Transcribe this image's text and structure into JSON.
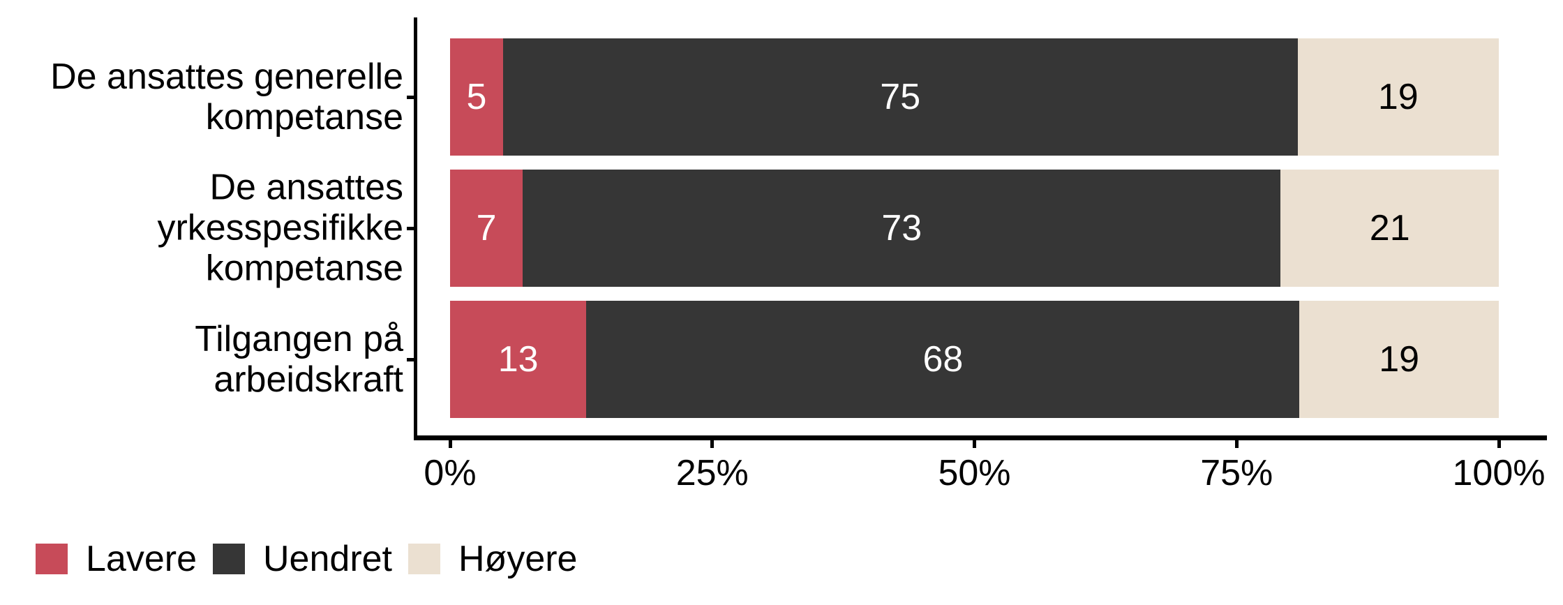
{
  "chart_data": {
    "type": "bar",
    "orientation": "horizontal",
    "stacking": "fill",
    "title": "",
    "xlabel": "",
    "ylabel": "",
    "grid": false,
    "axis_color": "#000000",
    "background_color": "#ffffff",
    "categories": [
      "De ansattes generelle kompetanse",
      "De ansattes yrkesspesifikke kompetanse",
      "Tilgangen på arbeidskraft"
    ],
    "category_label_lines": [
      [
        "De ansattes generelle",
        "kompetanse"
      ],
      [
        "De ansattes",
        "yrkesspesifikke",
        "kompetanse"
      ],
      [
        "Tilgangen på arbeidskraft"
      ]
    ],
    "series": [
      {
        "name": "Lavere",
        "color": "#C74B59",
        "label_color": "#ffffff",
        "values": [
          5,
          7,
          13
        ]
      },
      {
        "name": "Uendret",
        "color": "#363636",
        "label_color": "#ffffff",
        "values": [
          75,
          73,
          68
        ]
      },
      {
        "name": "Høyere",
        "color": "#EBE0D1",
        "label_color": "#000000",
        "values": [
          19,
          21,
          19
        ]
      }
    ],
    "x_ticks": [
      "0%",
      "25%",
      "50%",
      "75%",
      "100%"
    ],
    "x_tick_values": [
      0,
      25,
      50,
      75,
      100
    ],
    "x_range": [
      0,
      100
    ],
    "legend_position": "bottom-left"
  }
}
